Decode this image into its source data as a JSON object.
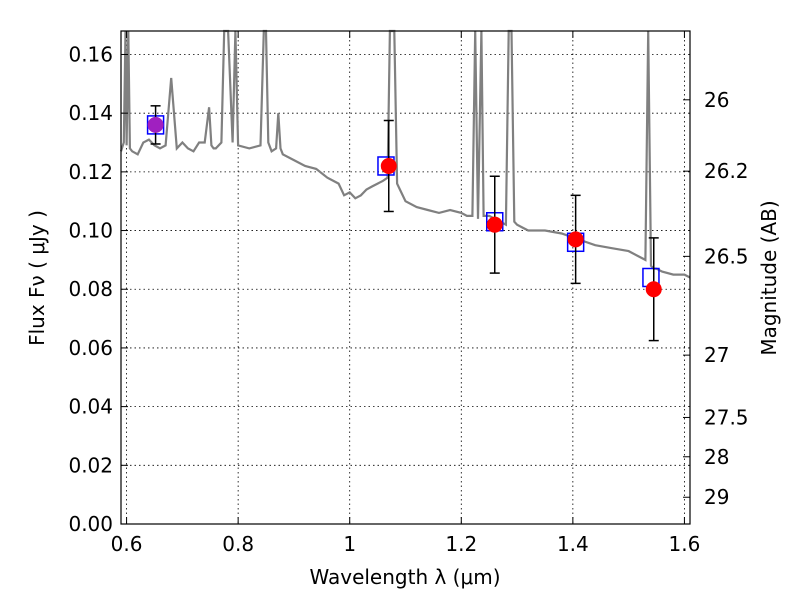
{
  "chart_data": {
    "type": "scatter",
    "xlabel": "Wavelength  λ (μm)",
    "ylabel": "Flux  Fν  ( μJy )",
    "y2label": "Magnitude (AB)",
    "xlim": [
      0.59,
      1.61
    ],
    "ylim": [
      0.0,
      0.168
    ],
    "x_ticks": [
      0.6,
      0.8,
      1.0,
      1.2,
      1.4,
      1.6
    ],
    "x_tick_labels": [
      "0.6",
      "0.8",
      "1",
      "1.2",
      "1.4",
      "1.6"
    ],
    "y_ticks": [
      0.0,
      0.02,
      0.04,
      0.06,
      0.08,
      0.1,
      0.12,
      0.14,
      0.16
    ],
    "y_tick_labels": [
      "0.00",
      "0.02",
      "0.04",
      "0.06",
      "0.08",
      "0.10",
      "0.12",
      "0.14",
      "0.16"
    ],
    "mag_ticks": [
      26,
      26.2,
      26.5,
      27,
      27.5,
      28,
      29
    ],
    "mag_tick_labels": [
      "26",
      "26.2",
      "26.5",
      "27",
      "27.5",
      "28",
      "29"
    ],
    "grid": true,
    "colors": {
      "spectrum": "#808080",
      "observed": "#ff0000",
      "first_observed": "#a020c0",
      "model_box": "#0000ff",
      "errorbar": "#000000"
    },
    "spectrum": {
      "x": [
        0.59,
        0.595,
        0.598,
        0.6,
        0.603,
        0.606,
        0.61,
        0.62,
        0.63,
        0.64,
        0.65,
        0.66,
        0.67,
        0.68,
        0.69,
        0.7,
        0.71,
        0.72,
        0.73,
        0.74,
        0.748,
        0.752,
        0.756,
        0.76,
        0.77,
        0.775,
        0.778,
        0.782,
        0.79,
        0.795,
        0.8,
        0.82,
        0.84,
        0.846,
        0.85,
        0.854,
        0.86,
        0.868,
        0.872,
        0.876,
        0.88,
        0.9,
        0.92,
        0.94,
        0.96,
        0.98,
        0.99,
        1.0,
        1.01,
        1.02,
        1.03,
        1.04,
        1.05,
        1.06,
        1.068,
        1.072,
        1.076,
        1.08,
        1.085,
        1.09,
        1.1,
        1.12,
        1.14,
        1.16,
        1.18,
        1.2,
        1.21,
        1.22,
        1.225,
        1.23,
        1.236,
        1.24,
        1.25,
        1.26,
        1.27,
        1.28,
        1.285,
        1.29,
        1.295,
        1.3,
        1.31,
        1.32,
        1.35,
        1.38,
        1.41,
        1.44,
        1.47,
        1.5,
        1.52,
        1.53,
        1.535,
        1.54,
        1.545,
        1.55,
        1.56,
        1.58,
        1.6,
        1.61
      ],
      "y": [
        0.127,
        0.13,
        0.168,
        0.129,
        0.168,
        0.128,
        0.127,
        0.126,
        0.13,
        0.131,
        0.129,
        0.128,
        0.129,
        0.152,
        0.128,
        0.13,
        0.128,
        0.127,
        0.13,
        0.13,
        0.142,
        0.129,
        0.128,
        0.128,
        0.13,
        0.168,
        0.168,
        0.168,
        0.13,
        0.168,
        0.129,
        0.128,
        0.129,
        0.168,
        0.168,
        0.13,
        0.127,
        0.128,
        0.14,
        0.128,
        0.126,
        0.124,
        0.122,
        0.121,
        0.118,
        0.116,
        0.112,
        0.113,
        0.111,
        0.112,
        0.114,
        0.115,
        0.116,
        0.117,
        0.118,
        0.168,
        0.168,
        0.168,
        0.116,
        0.114,
        0.11,
        0.108,
        0.107,
        0.106,
        0.107,
        0.106,
        0.105,
        0.105,
        0.168,
        0.104,
        0.168,
        0.105,
        0.105,
        0.104,
        0.103,
        0.102,
        0.168,
        0.168,
        0.103,
        0.102,
        0.101,
        0.1,
        0.1,
        0.099,
        0.097,
        0.095,
        0.094,
        0.093,
        0.091,
        0.09,
        0.168,
        0.088,
        0.087,
        0.087,
        0.086,
        0.085,
        0.085,
        0.084
      ]
    },
    "observed": [
      {
        "x": 0.652,
        "y": 0.136,
        "yerr": 0.0065
      },
      {
        "x": 1.07,
        "y": 0.122,
        "yerr": 0.0155
      },
      {
        "x": 1.26,
        "y": 0.102,
        "yerr": 0.0165
      },
      {
        "x": 1.405,
        "y": 0.097,
        "yerr": 0.015
      },
      {
        "x": 1.545,
        "y": 0.08,
        "yerr": 0.0175
      }
    ],
    "model": [
      {
        "x": 0.652,
        "y": 0.136
      },
      {
        "x": 1.065,
        "y": 0.122
      },
      {
        "x": 1.26,
        "y": 0.103
      },
      {
        "x": 1.405,
        "y": 0.096
      },
      {
        "x": 1.54,
        "y": 0.084
      }
    ]
  }
}
